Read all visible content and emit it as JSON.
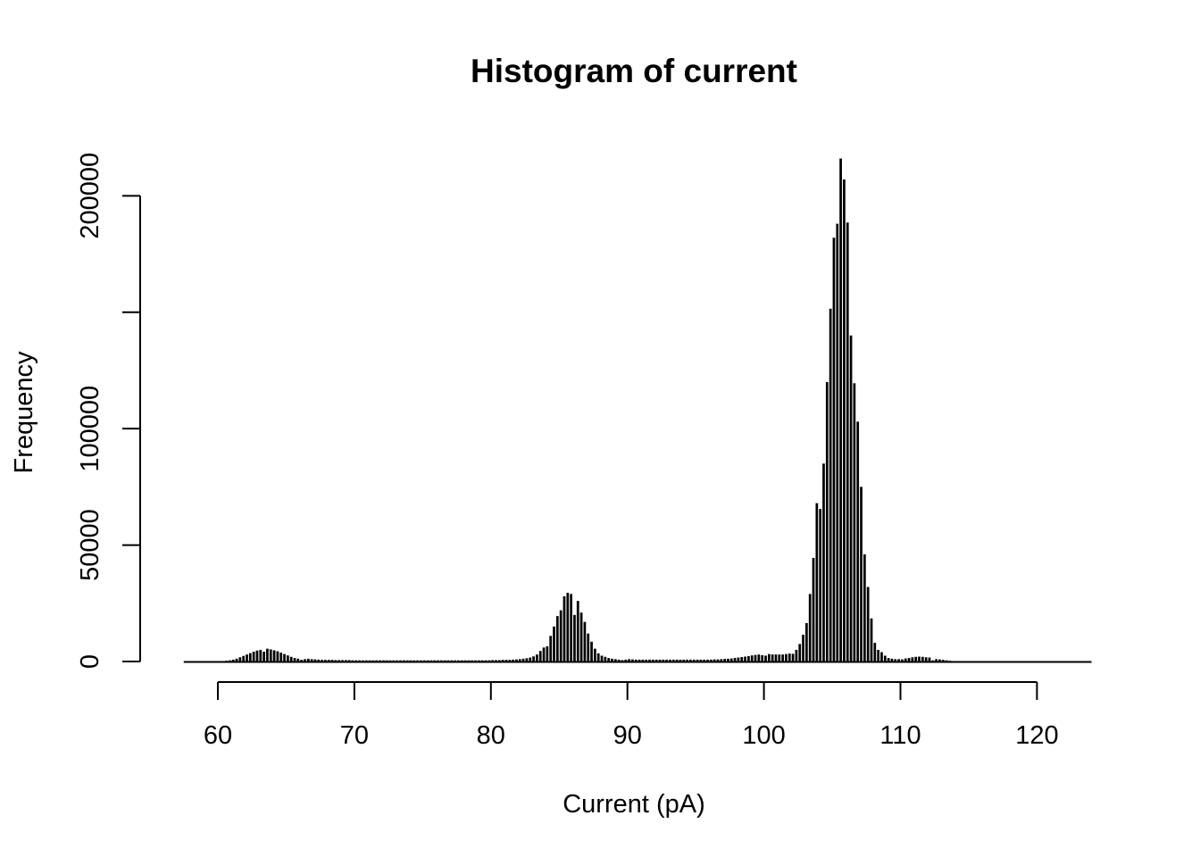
{
  "chart_data": {
    "type": "bar",
    "title": "Histogram of current",
    "xlabel": "Current (pA)",
    "ylabel": "Frequency",
    "xlim": [
      57.5,
      124
    ],
    "ylim": [
      0,
      215000
    ],
    "x_ticks": [
      60,
      70,
      80,
      90,
      100,
      110,
      120
    ],
    "x_tick_labels": [
      "60",
      "70",
      "80",
      "90",
      "100",
      "110",
      "120"
    ],
    "y_ticks": [
      0,
      50000,
      100000,
      150000,
      200000
    ],
    "y_tick_labels": [
      "0",
      "50000",
      "100000",
      "",
      "200000"
    ],
    "bin_width": 0.25,
    "bin_start": 57.5,
    "grid": false,
    "legend": "none",
    "bar_color": "#000000",
    "values": [
      0,
      0,
      0,
      0,
      0,
      0,
      0,
      0,
      0,
      0,
      100,
      200,
      300,
      500,
      800,
      1200,
      1800,
      2400,
      3000,
      3600,
      4200,
      4700,
      5000,
      4200,
      5500,
      5200,
      4800,
      4400,
      3800,
      3200,
      2600,
      2000,
      1500,
      1200,
      700,
      1000,
      1200,
      1000,
      900,
      800,
      700,
      700,
      700,
      700,
      600,
      600,
      600,
      600,
      600,
      500,
      500,
      500,
      500,
      500,
      500,
      500,
      500,
      500,
      500,
      500,
      500,
      500,
      500,
      500,
      500,
      500,
      500,
      500,
      500,
      500,
      500,
      500,
      500,
      500,
      500,
      500,
      500,
      500,
      500,
      500,
      500,
      500,
      500,
      500,
      500,
      500,
      500,
      500,
      500,
      500,
      600,
      600,
      600,
      700,
      700,
      700,
      800,
      900,
      1000,
      1200,
      1400,
      1700,
      2200,
      3000,
      4500,
      6000,
      6500,
      11000,
      15000,
      19500,
      22000,
      28000,
      29500,
      29000,
      20000,
      26000,
      21000,
      17000,
      12000,
      8500,
      5500,
      3500,
      2500,
      2000,
      1500,
      1200,
      1000,
      800,
      600,
      800,
      1000,
      900,
      800,
      800,
      800,
      800,
      800,
      800,
      800,
      800,
      800,
      800,
      800,
      800,
      800,
      800,
      800,
      800,
      800,
      800,
      800,
      800,
      800,
      800,
      800,
      900,
      900,
      1000,
      1100,
      1200,
      1300,
      1500,
      1700,
      1900,
      2100,
      2300,
      2600,
      2800,
      3000,
      2700,
      2500,
      3200,
      3000,
      3000,
      3000,
      3000,
      3200,
      3400,
      3300,
      5000,
      7500,
      11500,
      16500,
      29000,
      44500,
      68000,
      65500,
      85000,
      120000,
      151500,
      182000,
      188000,
      216000,
      207000,
      188500,
      140000,
      119500,
      103000,
      75000,
      46000,
      32000,
      18500,
      8000,
      5000,
      4000,
      2500,
      1500,
      1200,
      1000,
      1000,
      900,
      1300,
      1500,
      1800,
      2000,
      2100,
      2000,
      1800,
      1700,
      500,
      1000,
      900,
      700,
      500,
      300,
      200,
      100,
      0,
      0,
      0,
      0,
      0
    ]
  }
}
